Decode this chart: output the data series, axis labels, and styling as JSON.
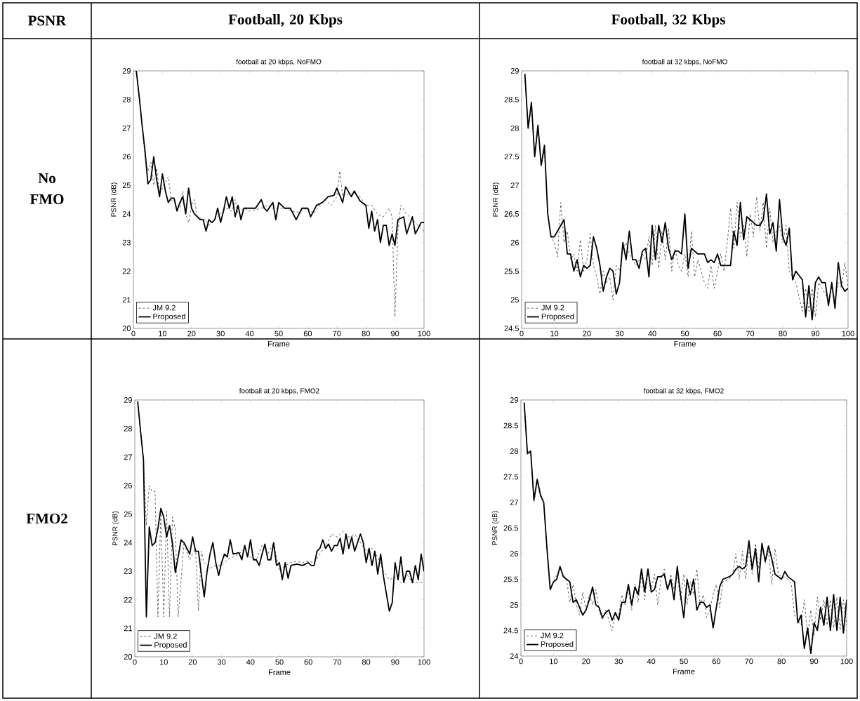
{
  "chart_data": [
    {
      "type": "other",
      "annotations": [
        "PSNR",
        "Football, 20 Kbps",
        "Football, 32 Kbps",
        "No FMO",
        "FMO2"
      ]
    },
    {
      "type": "line",
      "title": "football at 20 kbps, NoFMO",
      "xlabel": "Frame",
      "ylabel": "PSNR (dB)",
      "xlim": [
        0,
        100
      ],
      "ylim": [
        20,
        29
      ],
      "xticks": [
        0,
        10,
        20,
        30,
        40,
        50,
        60,
        70,
        80,
        90,
        100
      ],
      "yticks": [
        20,
        21,
        22,
        23,
        24,
        25,
        26,
        27,
        28,
        29
      ],
      "legend": "bottom left",
      "series": [
        {
          "name": "JM 9.2",
          "color": "#000000",
          "line_style": "dashed",
          "x": [
            1,
            2,
            3,
            4,
            5,
            6,
            7,
            8,
            9,
            10,
            12,
            13,
            14,
            16,
            17,
            18,
            19,
            20,
            21,
            22,
            24,
            25,
            26,
            28,
            30,
            32,
            34,
            35,
            36,
            38,
            40,
            44,
            46,
            48,
            52,
            56,
            60,
            62,
            64,
            66,
            68,
            70,
            71,
            72,
            74,
            76,
            78,
            80,
            82,
            84,
            86,
            88,
            89,
            90,
            91,
            92,
            94,
            96,
            98,
            100
          ],
          "values": [
            29,
            28.1,
            27.1,
            26.0,
            25.5,
            25.8,
            25.0,
            25.6,
            24.7,
            24.9,
            25.3,
            24.5,
            24.4,
            24.2,
            24.8,
            24.0,
            23.7,
            24.3,
            24.5,
            23.9,
            23.8,
            23.8,
            23.6,
            23.8,
            24.0,
            24.2,
            24.1,
            24.5,
            24.0,
            24.2,
            24.1,
            24.2,
            24.3,
            24.2,
            24.2,
            24.05,
            24.2,
            24.0,
            24.3,
            24.5,
            24.3,
            24.6,
            25.5,
            24.6,
            24.7,
            24.7,
            24.6,
            24.3,
            24.3,
            24.0,
            23.9,
            24.2,
            23.9,
            20.4,
            23.4,
            24.3,
            24.0,
            23.8,
            23.6,
            23.4
          ]
        },
        {
          "name": "Proposed",
          "color": "#000000",
          "line_style": "solid",
          "x": [
            1,
            2,
            3,
            4,
            5,
            6,
            7,
            8,
            9,
            10,
            11,
            12,
            13,
            14,
            15,
            16,
            17,
            18,
            19,
            20,
            21,
            22,
            23,
            24,
            25,
            26,
            27,
            28,
            29,
            30,
            31,
            32,
            33,
            34,
            35,
            36,
            37,
            38,
            40,
            42,
            44,
            45,
            46,
            48,
            49,
            50,
            52,
            54,
            56,
            58,
            60,
            61,
            63,
            65,
            67,
            69,
            70,
            72,
            73,
            75,
            76,
            78,
            80,
            81,
            82,
            83,
            84,
            85,
            86,
            87,
            88,
            89,
            90,
            91,
            93,
            94,
            96,
            97,
            99,
            100
          ],
          "values": [
            29,
            28.1,
            27.1,
            26.2,
            25.05,
            25.2,
            26.0,
            25.2,
            24.6,
            25.4,
            24.8,
            24.4,
            24.55,
            24.55,
            24.1,
            24.4,
            24.6,
            24.0,
            24.9,
            24.2,
            24.0,
            23.9,
            23.8,
            23.8,
            23.4,
            23.8,
            23.7,
            23.8,
            24.2,
            23.7,
            24.1,
            24.6,
            24.2,
            24.6,
            23.9,
            24.3,
            23.8,
            24.2,
            24.2,
            24.2,
            24.5,
            24.2,
            24.1,
            24.4,
            23.8,
            24.4,
            24.2,
            24.2,
            23.8,
            24.2,
            24.2,
            23.9,
            24.3,
            24.4,
            24.6,
            24.65,
            24.9,
            24.4,
            24.95,
            24.6,
            24.8,
            24.45,
            24.3,
            23.5,
            24.1,
            23.4,
            23.8,
            23.0,
            23.6,
            23.6,
            22.9,
            23.3,
            22.9,
            23.8,
            23.9,
            23.3,
            23.9,
            23.3,
            23.7,
            23.7
          ]
        }
      ]
    },
    {
      "type": "line",
      "title": "football at 32 kbps, NoFMO",
      "xlabel": "Frame",
      "ylabel": "PSNR (dB)",
      "xlim": [
        0,
        100
      ],
      "ylim": [
        24.5,
        29
      ],
      "xticks": [
        0,
        10,
        20,
        30,
        40,
        50,
        60,
        70,
        80,
        90,
        100
      ],
      "yticks": [
        24.5,
        25,
        25.5,
        26,
        26.5,
        27,
        27.5,
        28,
        28.5,
        29
      ],
      "legend": "bottom left",
      "series": [
        {
          "name": "JM 9.2",
          "color": "#000000",
          "line_style": "dashed",
          "x": [
            1,
            2,
            3,
            4,
            5,
            6,
            7,
            8,
            9,
            10,
            11,
            12,
            13,
            14,
            15,
            16,
            17,
            18,
            19,
            20,
            21,
            22,
            23,
            24,
            25,
            26,
            27,
            28,
            29,
            30,
            31,
            32,
            33,
            35,
            36,
            37,
            38,
            39,
            40,
            41,
            42,
            43,
            44,
            45,
            46,
            47,
            48,
            49,
            50,
            51,
            52,
            53,
            54,
            55,
            56,
            57,
            58,
            59,
            60,
            61,
            62,
            63,
            64,
            65,
            66,
            67,
            68,
            69,
            70,
            71,
            72,
            73,
            74,
            75,
            76,
            77,
            78,
            79,
            80,
            81,
            82,
            83,
            84,
            86,
            87,
            88,
            89,
            90,
            91,
            92,
            94,
            95,
            96,
            97,
            98,
            99,
            100
          ],
          "values": [
            28.9,
            28.0,
            28.4,
            27.5,
            28.0,
            27.4,
            27.6,
            26.5,
            26.1,
            26.0,
            25.75,
            26.7,
            26.0,
            26.2,
            25.7,
            25.8,
            25.5,
            26.05,
            25.5,
            25.7,
            26.15,
            25.6,
            25.4,
            25.1,
            25.5,
            25.3,
            25.4,
            25.0,
            25.6,
            25.5,
            25.9,
            26.0,
            25.8,
            25.6,
            25.7,
            25.8,
            25.7,
            26.1,
            25.6,
            26.3,
            25.55,
            26.2,
            25.7,
            26.25,
            25.5,
            25.9,
            25.6,
            25.5,
            25.8,
            25.4,
            26.2,
            25.4,
            25.7,
            null,
            25.3,
            25.2,
            25.6,
            25.2,
            25.5,
            25.8,
            25.5,
            26.0,
            26.6,
            25.9,
            26.7,
            26.1,
            26.3,
            25.75,
            26.5,
            26.1,
            26.8,
            26.2,
            26.7,
            25.9,
            26.6,
            26.0,
            26.2,
            26.3,
            26.0,
            26.3,
            25.5,
            25.4,
            25.3,
            24.8,
            25.2,
            24.8,
            25.2,
            24.7,
            25.3,
            25.2,
            25.0,
            25.2,
            25.0,
            25.3,
            25.2,
            25.65,
            25.2
          ]
        },
        {
          "name": "Proposed",
          "color": "#000000",
          "line_style": "solid",
          "x": [
            1,
            2,
            3,
            4,
            5,
            6,
            7,
            8,
            9,
            10,
            12,
            13,
            14,
            15,
            16,
            17,
            18,
            19,
            20,
            21,
            22,
            23,
            24,
            25,
            26,
            27,
            28,
            29,
            30,
            31,
            32,
            33,
            34,
            35,
            36,
            37,
            38,
            39,
            40,
            41,
            42,
            43,
            44,
            45,
            46,
            47,
            48,
            49,
            50,
            51,
            52,
            54,
            56,
            57,
            58,
            59,
            60,
            61,
            63,
            64,
            65,
            66,
            67,
            68,
            69,
            71,
            72,
            73,
            74,
            75,
            76,
            77,
            78,
            79,
            80,
            81,
            82,
            83,
            84,
            86,
            87,
            88,
            89,
            90,
            91,
            92,
            93,
            94,
            95,
            96,
            97,
            98,
            99,
            100
          ],
          "values": [
            28.95,
            28.0,
            28.45,
            27.5,
            28.05,
            27.35,
            27.7,
            26.5,
            26.1,
            26.1,
            26.3,
            26.4,
            25.8,
            25.8,
            25.5,
            25.7,
            25.4,
            25.6,
            25.55,
            25.6,
            26.1,
            25.9,
            25.6,
            25.15,
            25.4,
            25.55,
            25.5,
            25.1,
            25.3,
            26.0,
            25.7,
            26.2,
            25.7,
            25.7,
            25.55,
            25.85,
            25.9,
            25.4,
            26.3,
            25.7,
            26.3,
            26.0,
            26.35,
            25.9,
            25.7,
            25.85,
            25.85,
            25.8,
            26.5,
            25.55,
            25.9,
            25.8,
            25.8,
            25.65,
            25.7,
            25.65,
            25.8,
            25.6,
            25.6,
            25.6,
            26.2,
            25.95,
            26.7,
            26.05,
            26.45,
            26.35,
            26.3,
            26.3,
            26.4,
            26.85,
            26.15,
            26.35,
            25.85,
            26.75,
            26.1,
            25.95,
            26.25,
            25.35,
            25.5,
            25.35,
            24.7,
            25.25,
            24.65,
            25.3,
            25.4,
            25.3,
            25.3,
            24.9,
            25.3,
            24.85,
            25.65,
            25.25,
            25.15,
            25.2
          ]
        }
      ]
    },
    {
      "type": "line",
      "title": "football at 20 kbps, FMO2",
      "xlabel": "Frame",
      "ylabel": "PSNR (dB)",
      "xlim": [
        0,
        100
      ],
      "ylim": [
        20,
        29
      ],
      "xticks": [
        0,
        10,
        20,
        30,
        40,
        50,
        60,
        70,
        80,
        90,
        100
      ],
      "yticks": [
        20,
        21,
        22,
        23,
        24,
        25,
        26,
        27,
        28,
        29
      ],
      "legend": "bottom left",
      "series": [
        {
          "name": "JM 9.2",
          "color": "#000000",
          "line_style": "dashed",
          "x": [
            1,
            2,
            3,
            4,
            5,
            6,
            7,
            8,
            9,
            10,
            11,
            12,
            13,
            14,
            15,
            16,
            17,
            18,
            19,
            20,
            21,
            22,
            23,
            24,
            26,
            28,
            30,
            32,
            34,
            36,
            38,
            40,
            42,
            44,
            46,
            48,
            50,
            52,
            54,
            56,
            58,
            60,
            62,
            64,
            66,
            68,
            70,
            72,
            74,
            76,
            78,
            80,
            82,
            84,
            86,
            88,
            90,
            92,
            94,
            96,
            98,
            100
          ],
          "values": [
            28.95,
            27.9,
            26.9,
            24.6,
            26.0,
            25.8,
            25.8,
            21.4,
            25.1,
            21.4,
            25.1,
            21.4,
            24.9,
            24.5,
            21.4,
            null,
            24.0,
            23.7,
            23.4,
            23.6,
            23.8,
            21.6,
            23.7,
            23.3,
            23.1,
            23.2,
            23.2,
            23.4,
            23.5,
            23.6,
            23.8,
            23.5,
            23.4,
            23.9,
            23.6,
            24.0,
            23.0,
            23.2,
            23.3,
            23.35,
            23.3,
            23.35,
            23.3,
            23.6,
            23.9,
            24.3,
            24.2,
            24.4,
            24.2,
            24.3,
            24.0,
            23.7,
            23.8,
            23.5,
            23.0,
            22.7,
            22.8,
            22.6,
            22.9,
            22.6,
            22.6,
            22.6
          ]
        },
        {
          "name": "Proposed",
          "color": "#000000",
          "line_style": "solid",
          "x": [
            1,
            2,
            3,
            4,
            5,
            6,
            7,
            8,
            9,
            10,
            11,
            12,
            13,
            14,
            15,
            16,
            17,
            18,
            19,
            20,
            21,
            22,
            23,
            24,
            25,
            26,
            27,
            28,
            29,
            30,
            31,
            32,
            33,
            34,
            36,
            37,
            38,
            39,
            40,
            41,
            42,
            43,
            44,
            45,
            46,
            47,
            48,
            49,
            50,
            51,
            52,
            53,
            54,
            56,
            58,
            60,
            61,
            62,
            63,
            64,
            65,
            66,
            67,
            68,
            69,
            70,
            71,
            72,
            73,
            74,
            75,
            76,
            77,
            78,
            79,
            80,
            81,
            82,
            83,
            84,
            85,
            86,
            87,
            88,
            89,
            90,
            91,
            92,
            93,
            94,
            95,
            96,
            97,
            98,
            99,
            100
          ],
          "values": [
            28.95,
            27.9,
            26.9,
            21.4,
            24.55,
            23.9,
            24.0,
            24.5,
            25.2,
            24.9,
            24.2,
            24.6,
            24.0,
            22.95,
            23.5,
            24.1,
            24.0,
            23.8,
            23.6,
            24.2,
            23.7,
            23.7,
            22.9,
            22.1,
            23.0,
            23.6,
            24.0,
            23.3,
            22.85,
            23.3,
            23.6,
            23.5,
            24.1,
            23.6,
            23.65,
            23.4,
            23.9,
            23.5,
            24.1,
            23.4,
            23.4,
            23.2,
            23.6,
            23.95,
            23.4,
            23.4,
            24.0,
            23.2,
            23.3,
            22.7,
            23.3,
            22.75,
            23.2,
            23.25,
            23.2,
            23.3,
            23.2,
            23.2,
            23.7,
            23.8,
            24.1,
            23.8,
            23.95,
            23.7,
            23.9,
            23.9,
            24.15,
            23.6,
            24.3,
            23.8,
            24.2,
            23.7,
            24.0,
            24.3,
            24.0,
            23.3,
            23.8,
            23.2,
            23.7,
            22.9,
            23.6,
            22.8,
            22.2,
            21.6,
            21.9,
            23.3,
            22.7,
            23.5,
            22.6,
            23.0,
            23.0,
            22.6,
            23.2,
            22.7,
            23.6,
            23.0
          ]
        }
      ]
    },
    {
      "type": "line",
      "title": "football at 32 kbps, FMO2",
      "xlabel": "Frame",
      "ylabel": "PSNR (dB)",
      "xlim": [
        0,
        100
      ],
      "ylim": [
        24,
        29
      ],
      "xticks": [
        0,
        10,
        20,
        30,
        40,
        50,
        60,
        70,
        80,
        90,
        100
      ],
      "yticks": [
        24,
        24.5,
        25,
        25.5,
        26,
        26.5,
        27,
        27.5,
        28,
        28.5,
        29
      ],
      "legend": "bottom left",
      "series": [
        {
          "name": "JM 9.2",
          "color": "#000000",
          "line_style": "dashed",
          "x": [
            1,
            2,
            3,
            4,
            5,
            6,
            7,
            8,
            9,
            10,
            12,
            13,
            14,
            15,
            16,
            17,
            18,
            19,
            20,
            21,
            22,
            23,
            24,
            25,
            26,
            27,
            28,
            29,
            30,
            31,
            32,
            33,
            34,
            35,
            36,
            37,
            38,
            39,
            40,
            41,
            42,
            43,
            44,
            45,
            46,
            47,
            48,
            49,
            50,
            51,
            52,
            53,
            54,
            55,
            56,
            57,
            58,
            59,
            60,
            61,
            62,
            64,
            65,
            66,
            67,
            68,
            69,
            70,
            71,
            72,
            73,
            74,
            75,
            76,
            77,
            78,
            79,
            80,
            82,
            83,
            84,
            85,
            86,
            87,
            88,
            89,
            90,
            91,
            92,
            93,
            94,
            95,
            96,
            97,
            98,
            99,
            100
          ],
          "values": [
            28.9,
            28.0,
            28.0,
            27.0,
            27.4,
            27.1,
            27.0,
            26.1,
            25.3,
            25.45,
            25.7,
            25.6,
            25.5,
            25.05,
            25.4,
            25.0,
            24.8,
            25.25,
            24.9,
            25.2,
            25.0,
            25.3,
            24.9,
            24.7,
            24.9,
            24.7,
            24.5,
            24.8,
            24.8,
            25.2,
            25.0,
            25.3,
            24.9,
            25.4,
            25.05,
            25.6,
            25.1,
            25.65,
            25.3,
            25.6,
            25.0,
            25.5,
            25.7,
            25.3,
            25.6,
            25.3,
            25.6,
            25.1,
            25.6,
            25.0,
            25.45,
            25.2,
            25.7,
            25.0,
            25.2,
            24.75,
            24.9,
            25.2,
            25.4,
            24.95,
            25.45,
            25.5,
            25.6,
            26.0,
            25.5,
            26.05,
            25.5,
            26.1,
            25.6,
            26.2,
            25.7,
            26.2,
            25.8,
            26.05,
            25.4,
            26.1,
            25.6,
            25.55,
            25.5,
            25.4,
            24.8,
            24.7,
            24.6,
            25.1,
            24.4,
            24.9,
            24.4,
            25.15,
            24.7,
            25.1,
            24.6,
            25.1,
            24.55,
            25.15,
            24.5,
            25.1,
            24.6
          ]
        },
        {
          "name": "Proposed",
          "color": "#000000",
          "line_style": "solid",
          "x": [
            1,
            2,
            3,
            4,
            5,
            6,
            7,
            8,
            9,
            10,
            11,
            12,
            13,
            14,
            15,
            16,
            17,
            18,
            19,
            20,
            21,
            22,
            23,
            24,
            25,
            26,
            27,
            28,
            29,
            30,
            31,
            32,
            33,
            34,
            35,
            36,
            37,
            38,
            39,
            40,
            41,
            42,
            43,
            44,
            45,
            46,
            47,
            48,
            49,
            50,
            51,
            52,
            53,
            54,
            55,
            56,
            57,
            58,
            59,
            60,
            61,
            62,
            64,
            65,
            66,
            67,
            68,
            69,
            70,
            71,
            72,
            73,
            74,
            75,
            76,
            77,
            78,
            80,
            81,
            82,
            84,
            85,
            86,
            87,
            88,
            89,
            90,
            91,
            92,
            93,
            94,
            95,
            96,
            97,
            98,
            99,
            100
          ],
          "values": [
            28.95,
            27.95,
            28.0,
            27.05,
            27.45,
            27.15,
            27.0,
            26.1,
            25.3,
            25.45,
            25.5,
            25.75,
            25.55,
            25.5,
            25.45,
            25.05,
            25.1,
            24.95,
            24.8,
            24.9,
            25.1,
            25.35,
            25.0,
            24.95,
            24.75,
            24.85,
            24.9,
            24.7,
            24.85,
            24.7,
            25.05,
            25.05,
            25.4,
            25.0,
            25.35,
            25.2,
            25.7,
            25.25,
            25.7,
            25.25,
            25.3,
            25.55,
            25.55,
            25.6,
            25.3,
            25.5,
            25.1,
            25.75,
            25.2,
            24.75,
            25.5,
            25.2,
            25.5,
            24.9,
            25.05,
            25.05,
            24.95,
            25.0,
            24.55,
            24.95,
            25.35,
            25.5,
            25.55,
            25.6,
            25.7,
            25.75,
            25.7,
            25.75,
            26.25,
            25.7,
            26.1,
            25.45,
            26.2,
            25.85,
            26.15,
            25.9,
            25.6,
            25.5,
            25.65,
            25.55,
            25.45,
            24.65,
            24.8,
            24.15,
            24.55,
            24.05,
            24.65,
            24.5,
            24.95,
            24.6,
            25.15,
            24.5,
            25.2,
            24.5,
            25.15,
            24.45,
            25.1
          ]
        }
      ]
    }
  ]
}
